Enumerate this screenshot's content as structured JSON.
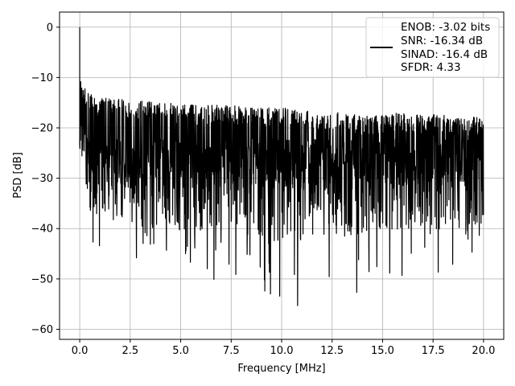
{
  "chart_data": {
    "type": "line",
    "title": "",
    "xlabel": "Frequency [MHz]",
    "ylabel": "PSD [dB]",
    "xlim": [
      -1.0,
      21.0
    ],
    "ylim": [
      -62.0,
      3.0
    ],
    "xticks": [
      0.0,
      2.5,
      5.0,
      7.5,
      10.0,
      12.5,
      15.0,
      17.5,
      20.0
    ],
    "xtick_labels": [
      "0.0",
      "2.5",
      "5.0",
      "7.5",
      "10.0",
      "12.5",
      "15.0",
      "17.5",
      "20.0"
    ],
    "yticks": [
      0,
      -10,
      -20,
      -30,
      -40,
      -50,
      -60
    ],
    "ytick_labels": [
      "0",
      "−10",
      "−20",
      "−30",
      "−40",
      "−50",
      "−60"
    ],
    "grid": true,
    "legend_position": "top-right",
    "legend_lines": [
      "ENOB: -3.02 bits",
      "SNR: -16.34 dB",
      "SINAD: -16.4 dB",
      "SFDR: 4.33"
    ],
    "series": [
      {
        "color": "#000000",
        "x_range": [
          0.0,
          20.0
        ],
        "peak": {
          "x": 0.0,
          "y": 0.0
        },
        "upper_envelope": [
          [
            0.05,
            -10
          ],
          [
            0.3,
            -13
          ],
          [
            1.0,
            -14
          ],
          [
            2.5,
            -14.5
          ],
          [
            4.0,
            -15
          ],
          [
            6.0,
            -15.5
          ],
          [
            8.0,
            -15.5
          ],
          [
            10.0,
            -16
          ],
          [
            12.0,
            -16.5
          ],
          [
            14.0,
            -17.5
          ],
          [
            16.0,
            -17
          ],
          [
            18.0,
            -17.5
          ],
          [
            20.0,
            -18
          ]
        ],
        "lower_envelope": [
          [
            0.2,
            -40
          ],
          [
            1.0,
            -45
          ],
          [
            1.3,
            -46.5
          ],
          [
            3.0,
            -47
          ],
          [
            4.3,
            -50.5
          ],
          [
            5.2,
            -51
          ],
          [
            7.5,
            -50
          ],
          [
            8.3,
            -54.5
          ],
          [
            8.6,
            -58.7
          ],
          [
            9.2,
            -56.6
          ],
          [
            10.9,
            -55.3
          ],
          [
            12.5,
            -49.5
          ],
          [
            13.8,
            -54.3
          ],
          [
            15.0,
            -50
          ],
          [
            17.8,
            -50.1
          ],
          [
            19.1,
            -51.9
          ],
          [
            20.0,
            -46
          ]
        ],
        "dense_band": [
          -32,
          -22
        ]
      }
    ]
  }
}
